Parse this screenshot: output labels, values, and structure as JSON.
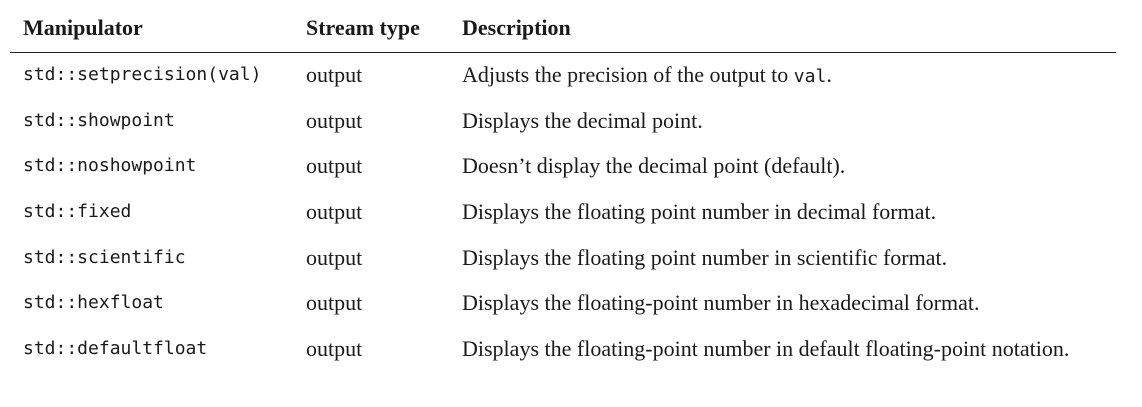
{
  "table": {
    "headers": {
      "manipulator": "Manipulator",
      "stream_type": "Stream type",
      "description": "Description"
    },
    "rows": [
      {
        "manipulator": "std::setprecision(val)",
        "stream_type": "output",
        "description_prefix": "Adjusts the precision of the output to ",
        "description_code": "val",
        "description_suffix": "."
      },
      {
        "manipulator": "std::showpoint",
        "stream_type": "output",
        "description": "Displays the decimal point."
      },
      {
        "manipulator": "std::noshowpoint",
        "stream_type": "output",
        "description": "Doesn’t display the decimal point (default)."
      },
      {
        "manipulator": "std::fixed",
        "stream_type": "output",
        "description": "Displays the floating point number in decimal format."
      },
      {
        "manipulator": "std::scientific",
        "stream_type": "output",
        "description": "Displays the floating point number in scientific format."
      },
      {
        "manipulator": "std::hexfloat",
        "stream_type": "output",
        "description": "Displays the floating-point number in hexadecimal format."
      },
      {
        "manipulator": "std::defaultfloat",
        "stream_type": "output",
        "description": "Displays the floating-point number in default floating-point notation."
      }
    ]
  }
}
